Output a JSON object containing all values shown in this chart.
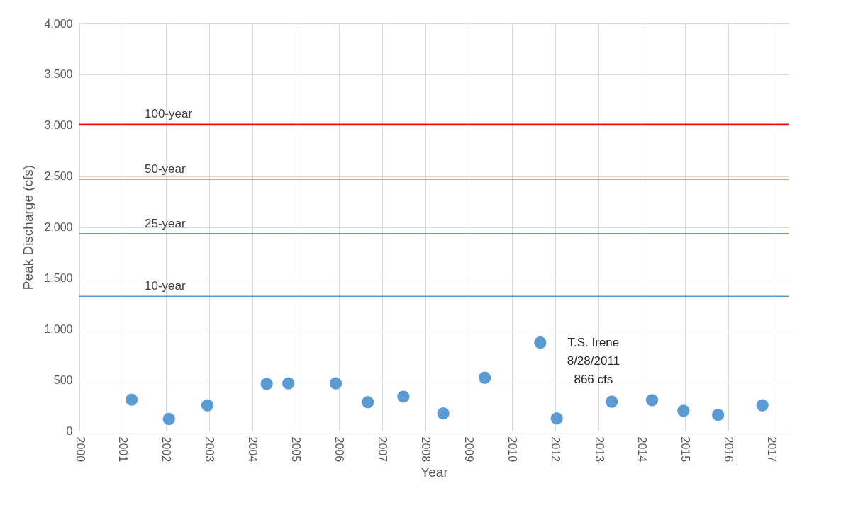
{
  "chart_data": {
    "type": "scatter",
    "xlabel": "Year",
    "ylabel": "Peak Discharge (cfs)",
    "x": [
      "2002-03-17",
      "2003-01-26",
      "2003-12-17",
      "2005-05-01",
      "2005-10-31",
      "2006-12-05",
      "2007-09-02",
      "2008-06-28",
      "2009-05-31",
      "2010-05-16",
      "2011-08-28",
      "2012-01-15",
      "2013-04-23",
      "2014-03-29",
      "2014-12-20",
      "2015-10-08",
      "2016-10-16"
    ],
    "series": [
      {
        "color": "#5b9bd5",
        "values": [
          305,
          115,
          250,
          460,
          465,
          465,
          280,
          335,
          170,
          520,
          866,
          120,
          285,
          300,
          195,
          155,
          250
        ]
      }
    ],
    "xlim": [
      "2000-12-31",
      "2017-05-25"
    ],
    "xticks": [
      {
        "value": "2000-12-31",
        "label": "2000"
      },
      {
        "value": "2001-12-31",
        "label": "2001"
      },
      {
        "value": "2002-12-31",
        "label": "2002"
      },
      {
        "value": "2003-12-31",
        "label": "2003"
      },
      {
        "value": "2004-12-31",
        "label": "2004"
      },
      {
        "value": "2005-12-31",
        "label": "2005"
      },
      {
        "value": "2006-12-31",
        "label": "2006"
      },
      {
        "value": "2007-12-31",
        "label": "2007"
      },
      {
        "value": "2008-12-31",
        "label": "2008"
      },
      {
        "value": "2009-12-31",
        "label": "2009"
      },
      {
        "value": "2010-12-31",
        "label": "2010"
      },
      {
        "value": "2012-01-01",
        "label": "2012"
      },
      {
        "value": "2013-01-01",
        "label": "2013"
      },
      {
        "value": "2014-01-01",
        "label": "2014"
      },
      {
        "value": "2015-01-01",
        "label": "2015"
      },
      {
        "value": "2016-01-01",
        "label": "2016"
      },
      {
        "value": "2017-01-01",
        "label": "2017"
      }
    ],
    "ylim": [
      0,
      4000
    ],
    "yticks": [
      {
        "value": 0,
        "label": "0"
      },
      {
        "value": 500,
        "label": "500"
      },
      {
        "value": 1000,
        "label": "1,000"
      },
      {
        "value": 1500,
        "label": "1,500"
      },
      {
        "value": 2000,
        "label": "2,000"
      },
      {
        "value": 2500,
        "label": "2,500"
      },
      {
        "value": 3000,
        "label": "3,000"
      },
      {
        "value": 3500,
        "label": "3,500"
      },
      {
        "value": 4000,
        "label": "4,000"
      }
    ],
    "ref_lines": [
      {
        "axis": "y",
        "value": 3010,
        "label": "100-year",
        "color": "#ff0000"
      },
      {
        "axis": "y",
        "value": 2470,
        "label": "50-year",
        "color": "#ed7d31"
      },
      {
        "axis": "y",
        "value": 1935,
        "label": "25-year",
        "color": "#70ad47"
      },
      {
        "axis": "y",
        "value": 1320,
        "label": "10-year",
        "color": "#5b9bd5"
      }
    ],
    "annotations": [
      {
        "text": "T.S. Irene\n8/28/2011\n866 cfs",
        "x": "2011-08-28",
        "y": 866
      }
    ],
    "grid": true,
    "marker": "circle"
  }
}
